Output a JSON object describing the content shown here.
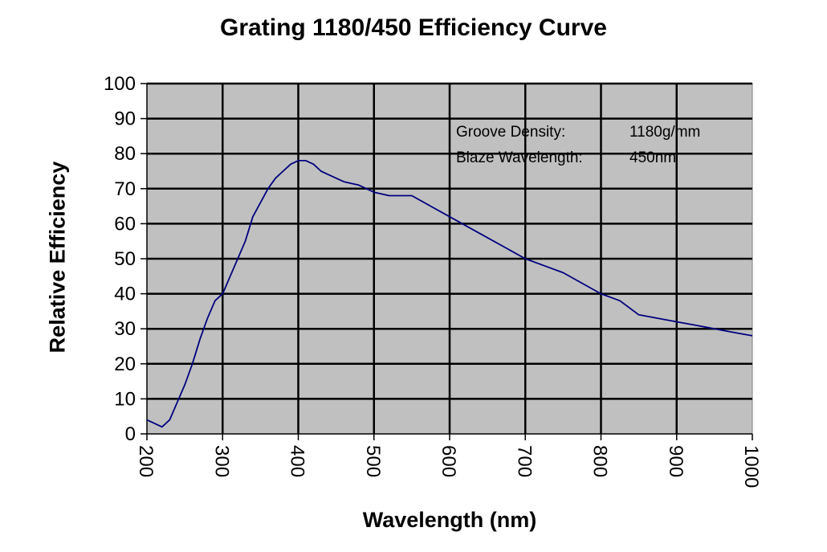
{
  "chart_data": {
    "type": "line",
    "title": "Grating 1180/450 Efficiency Curve",
    "xlabel": "Wavelength (nm)",
    "ylabel": "Relative Efficiency",
    "xlim": [
      200,
      1000
    ],
    "ylim": [
      0,
      100
    ],
    "xticks": [
      200,
      300,
      400,
      500,
      600,
      700,
      800,
      900,
      1000
    ],
    "yticks": [
      0,
      10,
      20,
      30,
      40,
      50,
      60,
      70,
      80,
      90,
      100
    ],
    "grid": true,
    "plot_background": "#c0c0c0",
    "line_color": "#000080",
    "annotations": [
      {
        "label": "Groove Density:",
        "value": "1180g/mm"
      },
      {
        "label": "Blaze Wavelength:",
        "value": "450nm"
      }
    ],
    "series": [
      {
        "x": [
          200,
          210,
          220,
          230,
          240,
          250,
          260,
          270,
          280,
          290,
          300,
          310,
          320,
          330,
          340,
          350,
          360,
          370,
          380,
          390,
          400,
          410,
          420,
          430,
          440,
          460,
          480,
          500,
          520,
          540,
          550,
          575,
          600,
          625,
          650,
          675,
          700,
          725,
          750,
          775,
          800,
          825,
          850,
          875,
          900,
          925,
          950,
          975,
          1000
        ],
        "y": [
          4,
          3,
          2,
          4,
          9,
          14,
          20,
          27,
          33,
          38,
          40,
          45,
          50,
          55,
          62,
          66,
          70,
          73,
          75,
          77,
          78,
          78,
          77,
          75,
          74,
          72,
          71,
          69,
          68,
          68,
          68,
          65,
          62,
          59,
          56,
          53,
          50,
          48,
          46,
          43,
          40,
          38,
          34,
          33,
          32,
          31,
          30,
          29,
          28
        ]
      }
    ]
  }
}
